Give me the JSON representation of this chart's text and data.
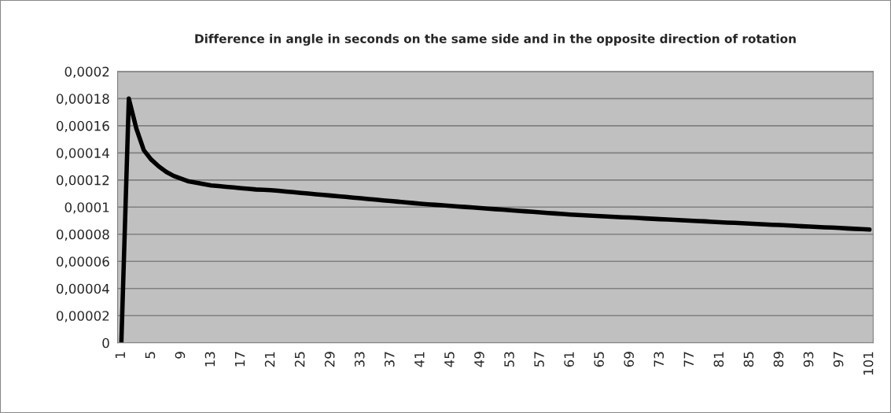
{
  "chart_data": {
    "type": "line",
    "title": "Difference in angle in seconds on the same side and in the opposite direction of rotation",
    "categories": [
      "1",
      null,
      null,
      null,
      "5",
      null,
      null,
      null,
      "9",
      null,
      null,
      null,
      "13",
      null,
      null,
      null,
      "17",
      null,
      null,
      null,
      "21",
      null,
      null,
      null,
      "25",
      null,
      null,
      null,
      "29",
      null,
      null,
      null,
      "33",
      null,
      null,
      null,
      "37",
      null,
      null,
      null,
      "41",
      null,
      null,
      null,
      "45",
      null,
      null,
      null,
      "49",
      null,
      null,
      null,
      "53",
      null,
      null,
      null,
      "57",
      null,
      null,
      null,
      "61",
      null,
      null,
      null,
      "65",
      null,
      null,
      null,
      "69",
      null,
      null,
      null,
      "73",
      null,
      null,
      null,
      "77",
      null,
      null,
      null,
      "81",
      null,
      null,
      null,
      "85",
      null,
      null,
      null,
      "89",
      null,
      null,
      null,
      "93",
      null,
      null,
      null,
      "97",
      null,
      null,
      null,
      "101"
    ],
    "series": [
      {
        "color": "#000000",
        "values": [
          0,
          0.00018,
          0.000158,
          0.000142,
          0.000135,
          0.00013,
          0.000126,
          0.000123,
          0.000121,
          0.000119,
          0.000118,
          0.000117,
          0.000116,
          0.0001155,
          0.000115,
          0.0001145,
          0.000114,
          0.0001135,
          0.000113,
          0.0001128,
          0.0001125,
          0.000112,
          0.0001115,
          0.000111,
          0.0001105,
          0.00011,
          0.0001095,
          0.000109,
          0.0001085,
          0.000108,
          0.0001075,
          0.000107,
          0.0001065,
          0.000106,
          0.0001055,
          0.000105,
          0.0001045,
          0.000104,
          0.0001035,
          0.000103,
          0.0001025,
          0.0001021,
          0.0001017,
          0.0001013,
          0.0001009,
          0.0001005,
          0.0001001,
          9.97e-05,
          9.93e-05,
          9.89e-05,
          9.85e-05,
          9.81e-05,
          9.77e-05,
          9.73e-05,
          9.69e-05,
          9.65e-05,
          9.61e-05,
          9.57e-05,
          9.53e-05,
          9.49e-05,
          9.45e-05,
          9.42e-05,
          9.39e-05,
          9.37e-05,
          9.34e-05,
          9.31e-05,
          9.28e-05,
          9.25e-05,
          9.23e-05,
          9.2e-05,
          9.17e-05,
          9.14e-05,
          9.11e-05,
          9.09e-05,
          9.06e-05,
          9.03e-05,
          9e-05,
          8.97e-05,
          8.95e-05,
          8.92e-05,
          8.89e-05,
          8.86e-05,
          8.84e-05,
          8.81e-05,
          8.78e-05,
          8.76e-05,
          8.73e-05,
          8.7e-05,
          8.68e-05,
          8.65e-05,
          8.62e-05,
          8.59e-05,
          8.57e-05,
          8.54e-05,
          8.51e-05,
          8.49e-05,
          8.46e-05,
          8.43e-05,
          8.4e-05,
          8.38e-05,
          8.35e-05
        ]
      }
    ],
    "ylim": [
      0,
      0.0002
    ],
    "yticks": [
      {
        "value": 0,
        "label": "0"
      },
      {
        "value": 2e-05,
        "label": "0,00002"
      },
      {
        "value": 4e-05,
        "label": "0,00004"
      },
      {
        "value": 6e-05,
        "label": "0,00006"
      },
      {
        "value": 8e-05,
        "label": "0,00008"
      },
      {
        "value": 0.0001,
        "label": "0,0001"
      },
      {
        "value": 0.00012,
        "label": "0,00012"
      },
      {
        "value": 0.00014,
        "label": "0,00014"
      },
      {
        "value": 0.00016,
        "label": "0,00016"
      },
      {
        "value": 0.00018,
        "label": "0,00018"
      },
      {
        "value": 0.0002,
        "label": "0,0002"
      }
    ],
    "grid": "y",
    "line_style": "solid",
    "marker": "none"
  }
}
